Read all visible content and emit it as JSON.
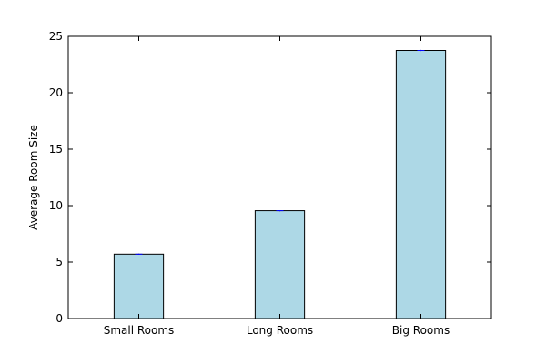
{
  "chart_data": {
    "type": "bar",
    "title": "",
    "xlabel": "",
    "ylabel": "Average Room Size",
    "categories": [
      "Small Rooms",
      "Long Rooms",
      "Big Rooms"
    ],
    "values": [
      5.7,
      9.55,
      23.75
    ],
    "error": [
      0.05,
      0.05,
      0.05
    ],
    "ylim": [
      0,
      25
    ],
    "yticks": [
      "0",
      "5",
      "10",
      "15",
      "20",
      "25"
    ],
    "grid": false,
    "legend": "none",
    "colors": {
      "bar_fill": "#add8e6",
      "bar_edge": "#000000",
      "error_bar": "#0000ff",
      "axes": "#000000",
      "background": "#ffffff"
    }
  }
}
